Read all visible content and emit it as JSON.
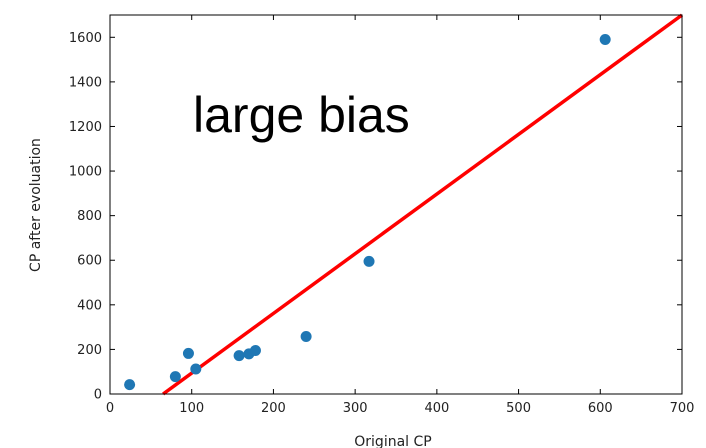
{
  "chart_data": {
    "type": "scatter",
    "xlabel": "Original CP",
    "ylabel": "CP after evoluation",
    "xlim": [
      0,
      700
    ],
    "ylim": [
      0,
      1700
    ],
    "xticks": [
      "0",
      "100",
      "200",
      "300",
      "400",
      "500",
      "600",
      "700"
    ],
    "yticks": [
      "0",
      "200",
      "400",
      "600",
      "800",
      "1000",
      "1200",
      "1400",
      "1600"
    ],
    "points": {
      "x": [
        24,
        80,
        96,
        105,
        158,
        170,
        178,
        240,
        317,
        606
      ],
      "y": [
        42,
        78,
        182,
        112,
        172,
        180,
        195,
        258,
        595,
        1590
      ]
    },
    "fit_line": {
      "x": [
        65,
        700
      ],
      "y": [
        0,
        1700
      ]
    },
    "annotation": "large bias",
    "grid": false,
    "colors": {
      "points": "#1f77b4",
      "line": "#ff0000",
      "axes": "#000000"
    }
  }
}
